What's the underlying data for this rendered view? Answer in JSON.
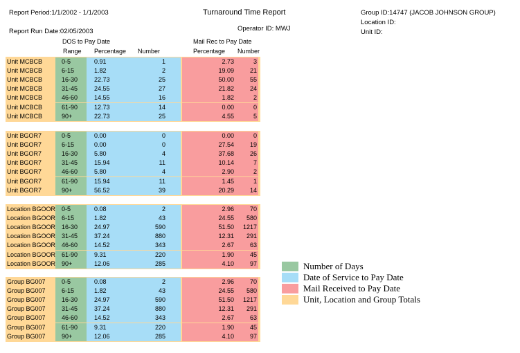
{
  "header": {
    "report_period": "Report Period:1/1/2002 - 1/1/2003",
    "title": "Turnaround Time Report",
    "group_id": "Group ID:14747  (JACOB  JOHNSON  GROUP)",
    "location_id": "Location ID:",
    "unit_id": "Unit ID:",
    "run_date": "Report Run Date:02/05/2003",
    "operator_id": "Operator ID: MWJ"
  },
  "columns": {
    "dos_title": "DOS to Pay Date",
    "mail_title": "Mail Rec to Pay Date",
    "range": "Range",
    "percentage": "Percentage",
    "number": "Number",
    "mail_percentage": "Percentage",
    "mail_number": "Number"
  },
  "sections": [
    {
      "rows": [
        {
          "label": "Unit MCBCB",
          "range": "0-5",
          "dos_pct": "0.91",
          "dos_num": "1",
          "mail_pct": "2.73",
          "mail_num": "3"
        },
        {
          "label": "Unit MCBCB",
          "range": "6-15",
          "dos_pct": "1.82",
          "dos_num": "2",
          "mail_pct": "19.09",
          "mail_num": "21"
        },
        {
          "label": "Unit MCBCB",
          "range": "16-30",
          "dos_pct": "22.73",
          "dos_num": "25",
          "mail_pct": "50.00",
          "mail_num": "55"
        },
        {
          "label": "Unit MCBCB",
          "range": "31-45",
          "dos_pct": "24.55",
          "dos_num": "27",
          "mail_pct": "21.82",
          "mail_num": "24"
        },
        {
          "label": "Unit MCBCB",
          "range": "46-60",
          "dos_pct": "14.55",
          "dos_num": "16",
          "mail_pct": "1.82",
          "mail_num": "2"
        },
        {
          "label": "Unit MCBCB",
          "range": "61-90",
          "dos_pct": "12.73",
          "dos_num": "14",
          "mail_pct": "0.00",
          "mail_num": "0"
        },
        {
          "label": "Unit MCBCB",
          "range": "90+",
          "dos_pct": "22.73",
          "dos_num": "25",
          "mail_pct": "4.55",
          "mail_num": "5"
        }
      ]
    },
    {
      "rows": [
        {
          "label": "Unit BGOR7",
          "range": "0-5",
          "dos_pct": "0.00",
          "dos_num": "0",
          "mail_pct": "0.00",
          "mail_num": "0"
        },
        {
          "label": "Unit BGOR7",
          "range": "6-15",
          "dos_pct": "0.00",
          "dos_num": "0",
          "mail_pct": "27.54",
          "mail_num": "19"
        },
        {
          "label": "Unit BGOR7",
          "range": "16-30",
          "dos_pct": "5.80",
          "dos_num": "4",
          "mail_pct": "37.68",
          "mail_num": "26"
        },
        {
          "label": "Unit BGOR7",
          "range": "31-45",
          "dos_pct": "15.94",
          "dos_num": "11",
          "mail_pct": "10.14",
          "mail_num": "7"
        },
        {
          "label": "Unit BGOR7",
          "range": "46-60",
          "dos_pct": "5.80",
          "dos_num": "4",
          "mail_pct": "2.90",
          "mail_num": "2"
        },
        {
          "label": "Unit BGOR7",
          "range": "61-90",
          "dos_pct": "15.94",
          "dos_num": "11",
          "mail_pct": "1.45",
          "mail_num": "1"
        },
        {
          "label": "Unit BGOR7",
          "range": "90+",
          "dos_pct": "56.52",
          "dos_num": "39",
          "mail_pct": "20.29",
          "mail_num": "14"
        }
      ]
    },
    {
      "rows": [
        {
          "label": "Location BGOOR",
          "range": "0-5",
          "dos_pct": "0.08",
          "dos_num": "2",
          "mail_pct": "2.96",
          "mail_num": "70"
        },
        {
          "label": "Location BGOOR",
          "range": "6-15",
          "dos_pct": "1.82",
          "dos_num": "43",
          "mail_pct": "24.55",
          "mail_num": "580"
        },
        {
          "label": "Location BGOOR",
          "range": "16-30",
          "dos_pct": "24.97",
          "dos_num": "590",
          "mail_pct": "51.50",
          "mail_num": "1217"
        },
        {
          "label": "Location BGOOR",
          "range": "31-45",
          "dos_pct": "37.24",
          "dos_num": "880",
          "mail_pct": "12.31",
          "mail_num": "291"
        },
        {
          "label": "Location BGOOR",
          "range": "46-60",
          "dos_pct": "14.52",
          "dos_num": "343",
          "mail_pct": "2.67",
          "mail_num": "63"
        },
        {
          "label": "Location BGOOR",
          "range": "61-90",
          "dos_pct": "9.31",
          "dos_num": "220",
          "mail_pct": "1.90",
          "mail_num": "45"
        },
        {
          "label": "Location BGOOR",
          "range": "90+",
          "dos_pct": "12.06",
          "dos_num": "285",
          "mail_pct": "4.10",
          "mail_num": "97"
        }
      ]
    },
    {
      "rows": [
        {
          "label": "Group BG007",
          "range": "0-5",
          "dos_pct": "0.08",
          "dos_num": "2",
          "mail_pct": "2.96",
          "mail_num": "70"
        },
        {
          "label": "Group BG007",
          "range": "6-15",
          "dos_pct": "1.82",
          "dos_num": "43",
          "mail_pct": "24.55",
          "mail_num": "580"
        },
        {
          "label": "Group BG007",
          "range": "16-30",
          "dos_pct": "24.97",
          "dos_num": "590",
          "mail_pct": "51.50",
          "mail_num": "1217"
        },
        {
          "label": "Group BG007",
          "range": "31-45",
          "dos_pct": "37.24",
          "dos_num": "880",
          "mail_pct": "12.31",
          "mail_num": "291"
        },
        {
          "label": "Group BG007",
          "range": "46-60",
          "dos_pct": "14.52",
          "dos_num": "343",
          "mail_pct": "2.67",
          "mail_num": "63"
        },
        {
          "label": "Group BG007",
          "range": "61-90",
          "dos_pct": "9.31",
          "dos_num": "220",
          "mail_pct": "1.90",
          "mail_num": "45"
        },
        {
          "label": "Group BG007",
          "range": "90+",
          "dos_pct": "12.06",
          "dos_num": "285",
          "mail_pct": "4.10",
          "mail_num": "97"
        }
      ]
    }
  ],
  "legend": [
    {
      "label": "Number of Days",
      "color": "#99c8a1"
    },
    {
      "label": "Date of Service to Pay Date",
      "color": "#a7ddf7"
    },
    {
      "label": "Mail Received to Pay Date",
      "color": "#f99d9e"
    },
    {
      "label": "Unit, Location and Group Totals",
      "color": "#ffd897"
    }
  ],
  "colors": {
    "days": "#99c8a1",
    "dos": "#a7ddf7",
    "mail": "#f99d9e",
    "totals": "#ffd897"
  }
}
